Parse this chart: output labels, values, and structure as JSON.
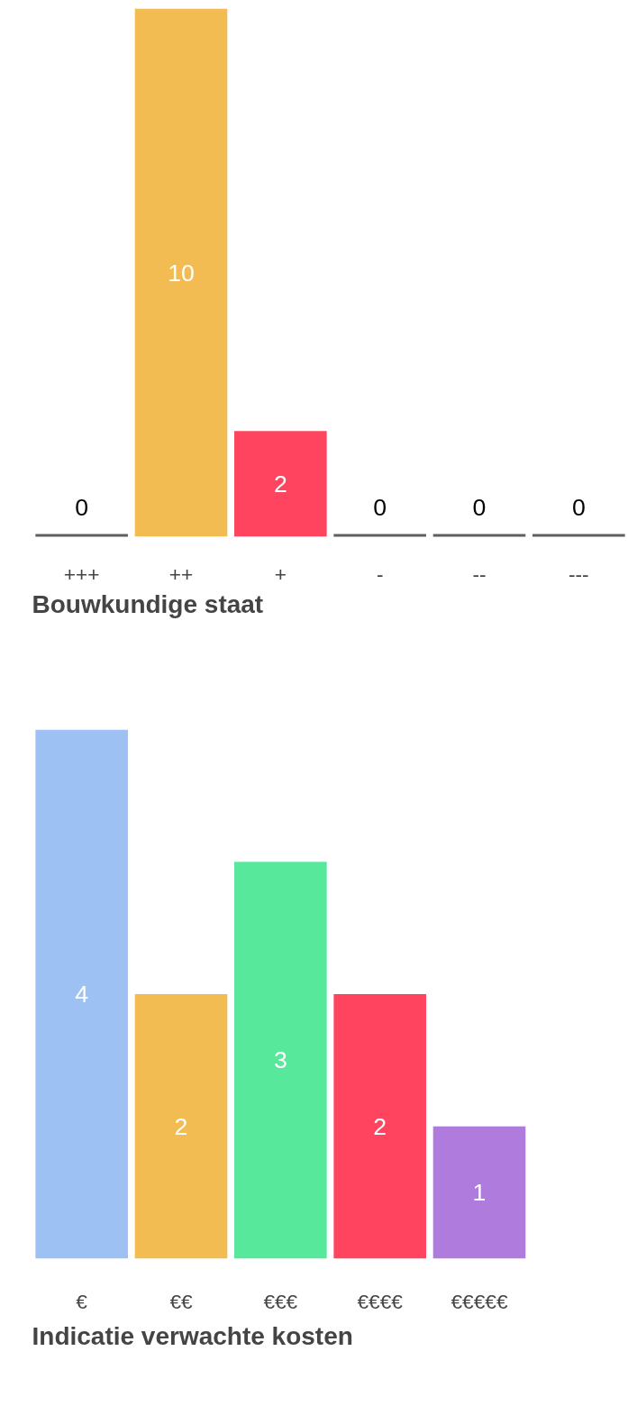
{
  "chart_data": [
    {
      "type": "bar",
      "title": "Bouwkundige staat",
      "categories": [
        "+++",
        "++",
        "+",
        "-",
        "--",
        "---"
      ],
      "values": [
        0,
        10,
        2,
        0,
        0,
        0
      ],
      "colors": [
        "#5f5f5f",
        "#f2bc52",
        "#ff445f",
        "#5f5f5f",
        "#5f5f5f",
        "#5f5f5f"
      ],
      "data_labels": true
    },
    {
      "type": "bar",
      "title": "Indicatie verwachte kosten",
      "categories": [
        "€",
        "€€",
        "€€€",
        "€€€€",
        "€€€€€"
      ],
      "values": [
        4,
        2,
        3,
        2,
        1
      ],
      "colors": [
        "#9dc1f3",
        "#f2bc52",
        "#57e89c",
        "#ff445f",
        "#af7cde"
      ],
      "data_labels": true
    }
  ]
}
